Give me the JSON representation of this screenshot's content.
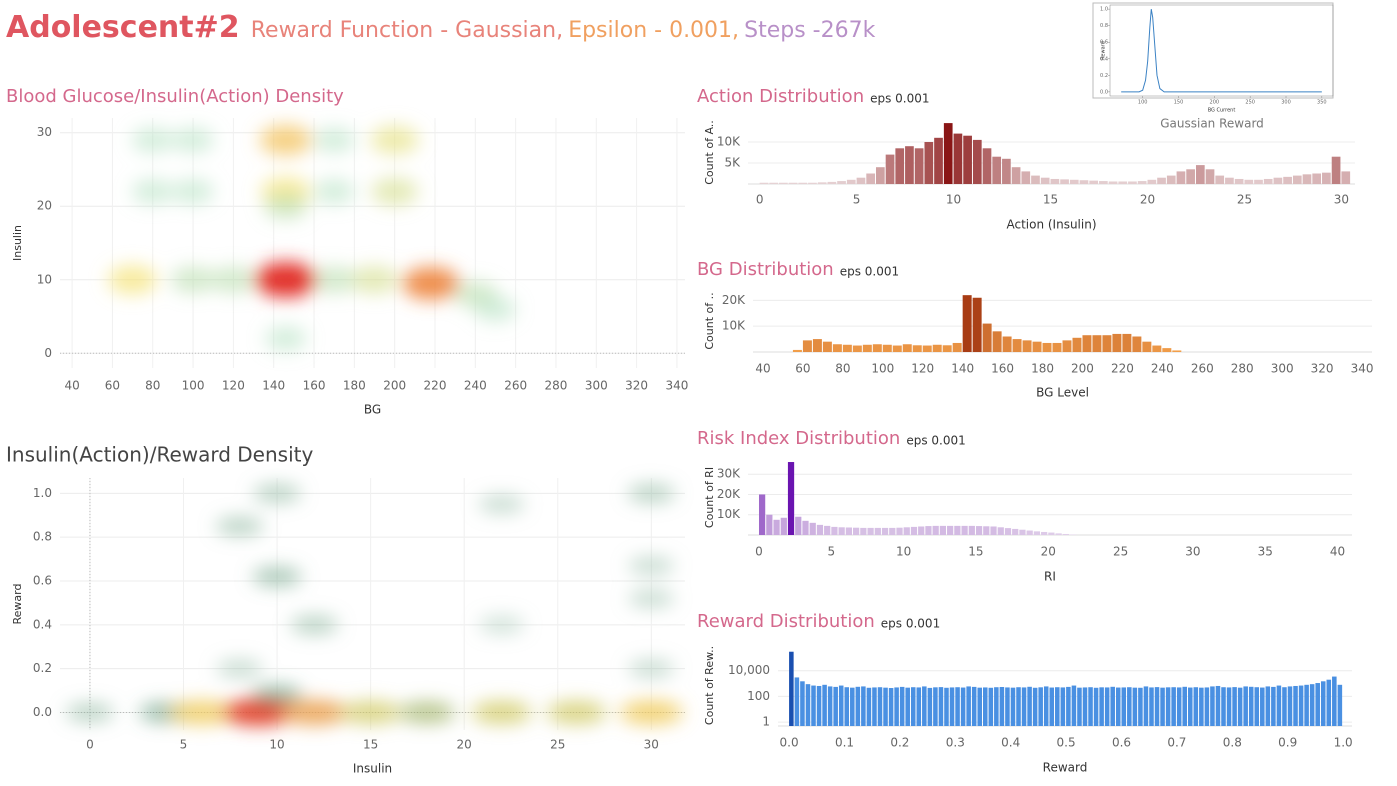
{
  "header": {
    "title": "Adolescent#2",
    "subtitle": [
      "Reward Function - Gaussian,",
      "Epsilon - 0.001,",
      "Steps -267k"
    ]
  },
  "chart_data": [
    {
      "type": "density",
      "title": "Blood Glucose/Insulin(Action) Density",
      "x_label": "BG",
      "y_label": "Insulin",
      "x": [
        70,
        100,
        120,
        146,
        146,
        146,
        146,
        100,
        100,
        200,
        200,
        218,
        190,
        240,
        170,
        80,
        80,
        170,
        170,
        146,
        250
      ],
      "y": [
        10,
        10,
        10,
        10,
        29,
        22,
        20,
        29,
        22,
        29,
        22,
        9.5,
        10,
        8,
        10,
        29,
        22,
        29,
        22,
        2,
        6
      ],
      "weight": [
        0.5,
        0.3,
        0.3,
        1.0,
        0.6,
        0.5,
        0.3,
        0.2,
        0.2,
        0.45,
        0.4,
        0.8,
        0.4,
        0.3,
        0.3,
        0.2,
        0.2,
        0.2,
        0.2,
        0.2,
        0.2
      ],
      "colors": [
        "#d8eee0",
        "#a8dcb8",
        "#f5e37a",
        "#f0953c",
        "#e2322a"
      ],
      "xlim": [
        34,
        344
      ],
      "xticks": [
        40,
        60,
        80,
        100,
        120,
        140,
        160,
        180,
        200,
        220,
        240,
        260,
        280,
        300,
        320,
        340
      ],
      "ylim": [
        -2,
        32
      ],
      "yticks": [
        0,
        10,
        20,
        30
      ],
      "grid": true
    },
    {
      "type": "density",
      "title": "Insulin(Action)/Reward Density",
      "x_label": "Insulin",
      "y_label": "Reward",
      "x": [
        0,
        4,
        6,
        9,
        12,
        15,
        18,
        22,
        26,
        30,
        10,
        10,
        8,
        12,
        30,
        30,
        30,
        22,
        22,
        8,
        30,
        10
      ],
      "y": [
        0,
        0,
        0,
        0,
        0,
        0,
        0,
        0,
        0,
        0,
        0.62,
        1.0,
        0.85,
        0.4,
        1.0,
        0.67,
        0.52,
        0.95,
        0.4,
        0.2,
        0.2,
        0.08
      ],
      "weight": [
        0.2,
        0.3,
        0.7,
        1.0,
        0.8,
        0.6,
        0.5,
        0.6,
        0.6,
        0.7,
        0.25,
        0.2,
        0.2,
        0.2,
        0.2,
        0.15,
        0.15,
        0.15,
        0.12,
        0.15,
        0.15,
        0.3
      ],
      "colors": [
        "#dcebe2",
        "#4e8c6a",
        "#f0d860",
        "#e24a30"
      ],
      "xlim": [
        -1.6,
        31.8
      ],
      "xticks": [
        0,
        5,
        10,
        15,
        20,
        25,
        30
      ],
      "ylim": [
        -0.08,
        1.07
      ],
      "yticks": [
        {
          "value": 0,
          "label": "0.0"
        },
        0.2,
        0.4,
        0.6,
        0.8,
        {
          "value": 1,
          "label": "1.0"
        }
      ],
      "grid": true
    },
    {
      "type": "histogram",
      "title": "Action Distribution",
      "annotation": "eps 0.001",
      "x_label": "Action (Insulin)",
      "y_label": "Count of A..",
      "bins": [
        0,
        0.5,
        1,
        1.5,
        2,
        2.5,
        3,
        3.5,
        4,
        4.5,
        5,
        5.5,
        6,
        6.5,
        7,
        7.5,
        8,
        8.5,
        9,
        9.5,
        10,
        10.5,
        11,
        11.5,
        12,
        12.5,
        13,
        13.5,
        14,
        14.5,
        15,
        15.5,
        16,
        16.5,
        17,
        17.5,
        18,
        18.5,
        19,
        19.5,
        20,
        20.5,
        21,
        21.5,
        22,
        22.5,
        23,
        23.5,
        24,
        24.5,
        25,
        25.5,
        26,
        26.5,
        27,
        27.5,
        28,
        28.5,
        29,
        29.5,
        30,
        30.5
      ],
      "values": [
        300,
        300,
        300,
        300,
        300,
        300,
        400,
        500,
        700,
        1000,
        1500,
        2500,
        4000,
        7000,
        8500,
        9000,
        8500,
        10000,
        11000,
        14500,
        12000,
        11500,
        10500,
        8500,
        6500,
        6000,
        4000,
        3000,
        2000,
        1500,
        1200,
        1100,
        1000,
        900,
        800,
        700,
        600,
        600,
        600,
        700,
        1000,
        1500,
        2000,
        3000,
        3500,
        4500,
        3500,
        2000,
        1500,
        1200,
        1000,
        1000,
        1200,
        1500,
        1700,
        2000,
        2300,
        2500,
        2700,
        6500,
        3000
      ],
      "color_range": [
        "#e8d6d8",
        "#8a1616"
      ],
      "xlim": [
        -0.6,
        30.7
      ],
      "xticks": [
        0,
        5,
        10,
        15,
        20,
        25,
        30
      ],
      "ylim": [
        0,
        15000
      ],
      "yticks": [
        {
          "value": 5000,
          "label": "5K"
        },
        {
          "value": 10000,
          "label": "10K"
        }
      ],
      "grid": true
    },
    {
      "type": "histogram",
      "title": "BG Distribution",
      "annotation": "eps 0.001",
      "x_label": "BG Level",
      "y_label": "Count of ..",
      "bins": [
        55,
        60,
        65,
        70,
        75,
        80,
        85,
        90,
        95,
        100,
        105,
        110,
        115,
        120,
        125,
        130,
        135,
        140,
        145,
        150,
        155,
        160,
        165,
        170,
        175,
        180,
        185,
        190,
        195,
        200,
        205,
        210,
        215,
        220,
        225,
        230,
        235,
        240,
        245,
        250
      ],
      "values": [
        800,
        4500,
        5000,
        4000,
        3000,
        2800,
        2500,
        2800,
        3000,
        2800,
        2500,
        3000,
        2600,
        2500,
        2800,
        2600,
        3500,
        22000,
        21000,
        11000,
        8000,
        6000,
        5000,
        4500,
        4000,
        3500,
        3500,
        4500,
        5500,
        6500,
        6500,
        6500,
        7000,
        7000,
        6000,
        4000,
        2500,
        1500,
        600
      ],
      "color_range": [
        "#f4a24c",
        "#a83c14"
      ],
      "xlim": [
        35,
        345
      ],
      "xticks": [
        40,
        60,
        80,
        100,
        120,
        140,
        160,
        180,
        200,
        220,
        240,
        260,
        280,
        300,
        320,
        340
      ],
      "ylim": [
        0,
        24000
      ],
      "yticks": [
        {
          "value": 10000,
          "label": "10K"
        },
        {
          "value": 20000,
          "label": "20K"
        }
      ],
      "grid": true
    },
    {
      "type": "histogram",
      "title": "Risk Index Distribution",
      "annotation": "eps 0.001",
      "x_label": "RI",
      "y_label": "Count of RI",
      "bins": [
        0,
        0.5,
        1,
        1.5,
        2,
        2.5,
        3,
        3.5,
        4,
        4.5,
        5,
        5.5,
        6,
        6.5,
        7,
        7.5,
        8,
        8.5,
        9,
        9.5,
        10,
        10.5,
        11,
        11.5,
        12,
        12.5,
        13,
        13.5,
        14,
        14.5,
        15,
        15.5,
        16,
        16.5,
        17,
        17.5,
        18,
        18.5,
        19,
        19.5,
        20,
        20.5,
        21,
        21.5,
        22
      ],
      "values": [
        20000,
        10000,
        7500,
        8500,
        36000,
        9000,
        7000,
        6000,
        5000,
        4500,
        4000,
        3800,
        3700,
        3600,
        3500,
        3500,
        3500,
        3500,
        3500,
        3600,
        3800,
        4000,
        4200,
        4400,
        4500,
        4500,
        4500,
        4500,
        4500,
        4500,
        4400,
        4300,
        4200,
        3800,
        3400,
        3000,
        2600,
        2200,
        1800,
        1500,
        1200,
        800,
        500,
        200
      ],
      "color_range": [
        "#e2d2ea",
        "#6a14b0"
      ],
      "xlim": [
        -0.76,
        41
      ],
      "xticks": [
        0,
        5,
        10,
        15,
        20,
        25,
        30,
        35,
        40
      ],
      "ylim": [
        0,
        37000
      ],
      "yticks": [
        {
          "value": 10000,
          "label": "10K"
        },
        {
          "value": 20000,
          "label": "20K"
        },
        {
          "value": 30000,
          "label": "30K"
        }
      ],
      "grid": true
    },
    {
      "type": "histogram",
      "title": "Reward Distribution",
      "annotation": "eps 0.001",
      "x_label": "Reward",
      "y_label": "Count of Rew..",
      "log": true,
      "bins": [
        0,
        0.01,
        0.02,
        0.03,
        0.04,
        0.05,
        0.06,
        0.07,
        0.08,
        0.09,
        0.1,
        0.11,
        0.12,
        0.13,
        0.14,
        0.15,
        0.16,
        0.17,
        0.18,
        0.19,
        0.2,
        0.21,
        0.22,
        0.23,
        0.24,
        0.25,
        0.26,
        0.27,
        0.28,
        0.29,
        0.3,
        0.31,
        0.32,
        0.33,
        0.34,
        0.35,
        0.36,
        0.37,
        0.38,
        0.39,
        0.4,
        0.41,
        0.42,
        0.43,
        0.44,
        0.45,
        0.46,
        0.47,
        0.48,
        0.49,
        0.5,
        0.51,
        0.52,
        0.53,
        0.54,
        0.55,
        0.56,
        0.57,
        0.58,
        0.59,
        0.6,
        0.61,
        0.62,
        0.63,
        0.64,
        0.65,
        0.66,
        0.67,
        0.68,
        0.69,
        0.7,
        0.71,
        0.72,
        0.73,
        0.74,
        0.75,
        0.76,
        0.77,
        0.78,
        0.79,
        0.8,
        0.81,
        0.82,
        0.83,
        0.84,
        0.85,
        0.86,
        0.87,
        0.88,
        0.89,
        0.9,
        0.91,
        0.92,
        0.93,
        0.94,
        0.95,
        0.96,
        0.97,
        0.98,
        0.99,
        1
      ],
      "values": [
        300000,
        3000,
        1500,
        900,
        700,
        650,
        800,
        600,
        550,
        700,
        520,
        480,
        560,
        600,
        470,
        500,
        520,
        480,
        450,
        500,
        550,
        480,
        520,
        500,
        600,
        460,
        510,
        530,
        470,
        500,
        520,
        490,
        600,
        550,
        480,
        500,
        470,
        520,
        540,
        500,
        480,
        520,
        500,
        560,
        470,
        510,
        600,
        490,
        520,
        500,
        550,
        700,
        480,
        500,
        520,
        470,
        510,
        500,
        560,
        490,
        500,
        520,
        480,
        470,
        600,
        500,
        530,
        480,
        510,
        520,
        500,
        560,
        490,
        520,
        480,
        500,
        600,
        650,
        520,
        500,
        530,
        480,
        600,
        560,
        520,
        490,
        600,
        550,
        700,
        520,
        600,
        650,
        700,
        800,
        900,
        1100,
        1500,
        2000,
        3500,
        800
      ],
      "color_range": [
        "#4a90e2",
        "#1a4fb0"
      ],
      "xlim": [
        -0.02,
        1.016
      ],
      "xticks": [
        {
          "value": 0,
          "label": "0.0"
        },
        0.1,
        0.2,
        0.3,
        0.4,
        0.5,
        0.6,
        0.7,
        0.8,
        0.9,
        {
          "value": 1,
          "label": "1.0"
        }
      ],
      "ylim": [
        0.5,
        1000000
      ],
      "yticks": [
        1,
        100,
        {
          "value": 10000,
          "label": "10,000"
        }
      ],
      "grid": true
    },
    {
      "type": "line",
      "title": "Gaussian Reward",
      "x_label": "BG Current",
      "y_label": "Reward",
      "color": "#3b82c4",
      "x": [
        70,
        95,
        100,
        104,
        107,
        110,
        112,
        114,
        117,
        120,
        124,
        130,
        350
      ],
      "values": [
        0,
        0,
        0.02,
        0.14,
        0.37,
        0.78,
        1.0,
        0.9,
        0.55,
        0.2,
        0.04,
        0,
        0
      ],
      "xlim": [
        60,
        360
      ],
      "xticks": [
        100,
        150,
        200,
        250,
        300,
        350
      ],
      "ylim": [
        -0.05,
        1.05
      ],
      "yticks": [
        {
          "value": 0,
          "label": "0.0"
        },
        0.2,
        0.4,
        0.6,
        0.8,
        {
          "value": 1,
          "label": "1.0"
        }
      ],
      "grid": false
    }
  ]
}
